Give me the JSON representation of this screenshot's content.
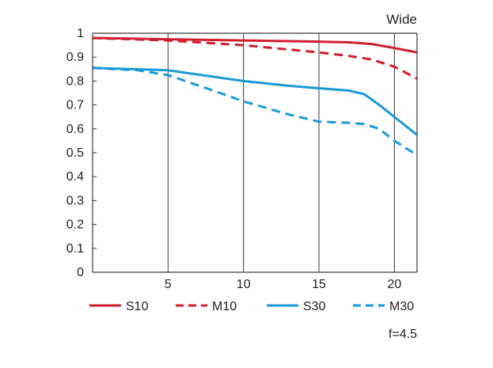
{
  "chart_data": {
    "type": "line",
    "title": "Wide",
    "note": "f=4.5",
    "xlim": [
      0,
      21.5
    ],
    "ylim": [
      0,
      1
    ],
    "x_ticks": [
      5,
      10,
      15,
      20
    ],
    "x_tick_labels": [
      "5",
      "10",
      "15",
      "20"
    ],
    "y_ticks": [
      0,
      0.1,
      0.2,
      0.3,
      0.4,
      0.5,
      0.6,
      0.7,
      0.8,
      0.9,
      1
    ],
    "y_tick_labels": [
      "0",
      "0.1",
      "0.2",
      "0.3",
      "0.4",
      "0.5",
      "0.6",
      "0.7",
      "0.8",
      "0.9",
      "1"
    ],
    "grid": "vertical",
    "legend_position": "bottom",
    "series": [
      {
        "name": "S10",
        "color": "#d01f2e",
        "style": "solid",
        "x": [
          0,
          5,
          10,
          15,
          17,
          18.5,
          20,
          21.5
        ],
        "y": [
          0.98,
          0.975,
          0.97,
          0.965,
          0.962,
          0.955,
          0.938,
          0.92
        ]
      },
      {
        "name": "M10",
        "color": "#d01f2e",
        "style": "dashed",
        "x": [
          0,
          5,
          10,
          15,
          17,
          18.5,
          20,
          21.5
        ],
        "y": [
          0.98,
          0.97,
          0.95,
          0.92,
          0.905,
          0.89,
          0.86,
          0.81
        ]
      },
      {
        "name": "S30",
        "color": "#1a9ad6",
        "style": "solid",
        "x": [
          0,
          5,
          10,
          13,
          15,
          17,
          18,
          19,
          20,
          21.5
        ],
        "y": [
          0.855,
          0.845,
          0.8,
          0.78,
          0.77,
          0.76,
          0.745,
          0.7,
          0.65,
          0.575
        ]
      },
      {
        "name": "M30",
        "color": "#1a9ad6",
        "style": "dashed",
        "x": [
          0,
          3,
          5,
          8,
          10,
          13,
          15,
          17,
          18,
          19,
          20,
          21.5
        ],
        "y": [
          0.855,
          0.845,
          0.825,
          0.76,
          0.715,
          0.66,
          0.63,
          0.625,
          0.62,
          0.6,
          0.55,
          0.49
        ]
      }
    ]
  }
}
